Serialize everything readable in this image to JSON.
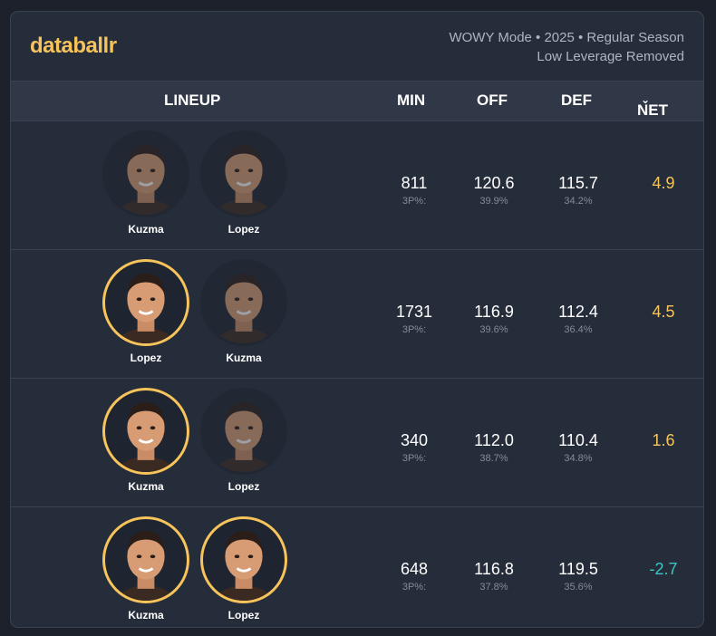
{
  "header": {
    "logo": "databallr",
    "mode_line": "WOWY Mode • 2025 • Regular Season",
    "filter_line": "Low Leverage Removed"
  },
  "columns": {
    "lineup": "LINEUP",
    "min": "MIN",
    "off": "OFF",
    "def": "DEF",
    "net": "NET",
    "net_sort_icon": "chevron-down-icon"
  },
  "colors": {
    "accent": "#f7c35b",
    "negative": "#3ec6c6",
    "background": "#262d3a"
  },
  "rows": [
    {
      "players": [
        {
          "name": "Kuzma",
          "on_court": false
        },
        {
          "name": "Lopez",
          "on_court": false
        }
      ],
      "min": "811",
      "min_sub": "3P%:",
      "off": "120.6",
      "off_sub": "39.9%",
      "def": "115.7",
      "def_sub": "34.2%",
      "net": "4.9",
      "net_sign": "pos"
    },
    {
      "players": [
        {
          "name": "Lopez",
          "on_court": true
        },
        {
          "name": "Kuzma",
          "on_court": false
        }
      ],
      "min": "1731",
      "min_sub": "3P%:",
      "off": "116.9",
      "off_sub": "39.6%",
      "def": "112.4",
      "def_sub": "36.4%",
      "net": "4.5",
      "net_sign": "pos"
    },
    {
      "players": [
        {
          "name": "Kuzma",
          "on_court": true
        },
        {
          "name": "Lopez",
          "on_court": false
        }
      ],
      "min": "340",
      "min_sub": "3P%:",
      "off": "112.0",
      "off_sub": "38.7%",
      "def": "110.4",
      "def_sub": "34.8%",
      "net": "1.6",
      "net_sign": "pos"
    },
    {
      "players": [
        {
          "name": "Kuzma",
          "on_court": true
        },
        {
          "name": "Lopez",
          "on_court": true
        }
      ],
      "min": "648",
      "min_sub": "3P%:",
      "off": "116.8",
      "off_sub": "37.8%",
      "def": "119.5",
      "def_sub": "35.6%",
      "net": "-2.7",
      "net_sign": "neg"
    }
  ]
}
